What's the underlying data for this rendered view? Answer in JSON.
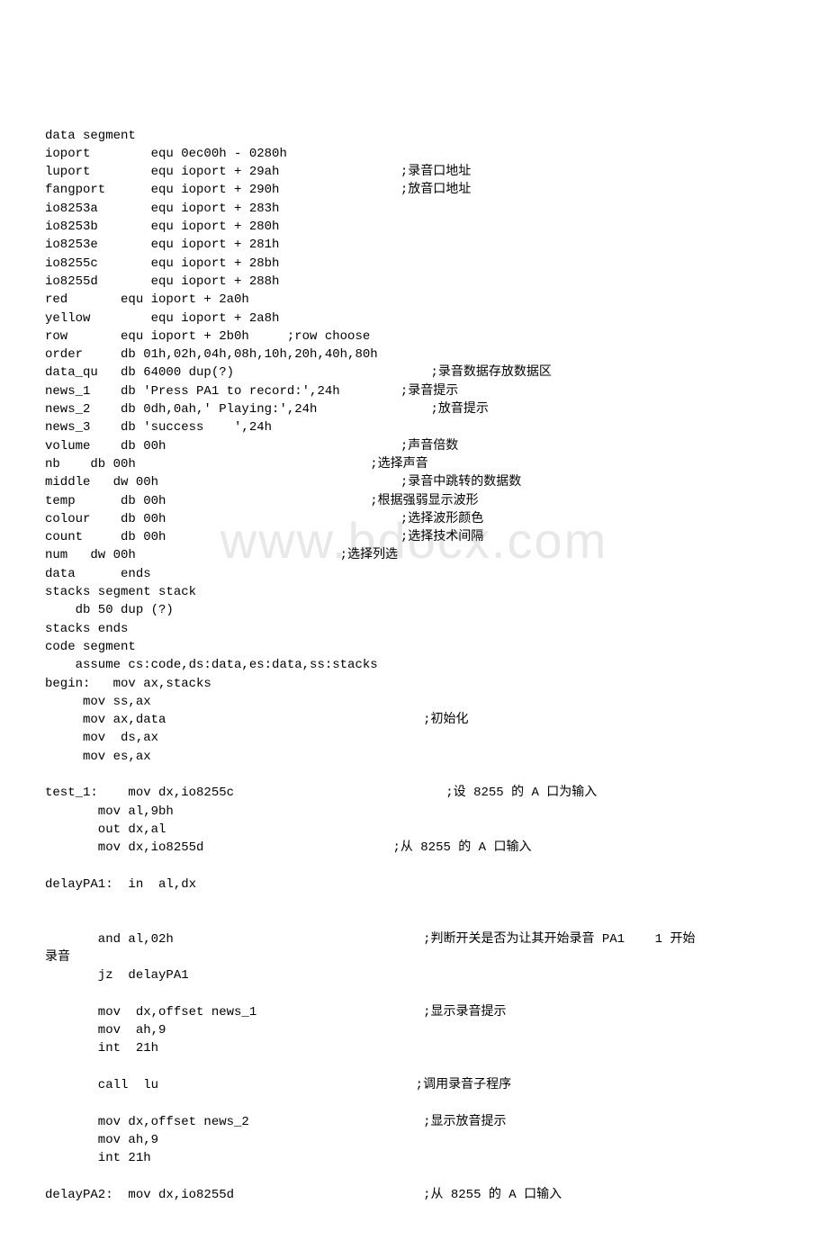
{
  "watermark": "www.bdocx.com",
  "lines": [
    "data segment",
    "ioport        equ 0ec00h - 0280h",
    "luport        equ ioport + 29ah                ;录音口地址",
    "fangport      equ ioport + 290h                ;放音口地址",
    "io8253a       equ ioport + 283h",
    "io8253b       equ ioport + 280h",
    "io8253e       equ ioport + 281h",
    "io8255c       equ ioport + 28bh",
    "io8255d       equ ioport + 288h",
    "red       equ ioport + 2a0h",
    "yellow        equ ioport + 2a8h",
    "row       equ ioport + 2b0h     ;row choose",
    "order     db 01h,02h,04h,08h,10h,20h,40h,80h",
    "data_qu   db 64000 dup(?)                          ;录音数据存放数据区",
    "news_1    db 'Press PA1 to record:',24h        ;录音提示",
    "news_2    db 0dh,0ah,' Playing:',24h               ;放音提示",
    "news_3    db 'success    ',24h",
    "volume    db 00h                               ;声音倍数",
    "nb    db 00h                               ;选择声音",
    "middle   dw 00h                                ;录音中跳转的数据数",
    "temp      db 00h                           ;根据强弱显示波形",
    "colour    db 00h                               ;选择波形颜色",
    "count     db 00h                               ;选择技术间隔",
    "num   dw 00h                           ;选择列选",
    "data      ends",
    "stacks segment stack",
    "    db 50 dup (?)",
    "stacks ends",
    "code segment",
    "    assume cs:code,ds:data,es:data,ss:stacks",
    "begin:   mov ax,stacks",
    "     mov ss,ax",
    "     mov ax,data                                  ;初始化",
    "     mov  ds,ax",
    "     mov es,ax",
    "",
    "test_1:    mov dx,io8255c                            ;设 8255 的 A 口为输入",
    "       mov al,9bh",
    "       out dx,al",
    "       mov dx,io8255d                         ;从 8255 的 A 口输入",
    "",
    "delayPA1:  in  al,dx",
    "",
    "",
    "       and al,02h                                 ;判断开关是否为让其开始录音 PA1    1 开始",
    "录音",
    "       jz  delayPA1",
    "",
    "       mov  dx,offset news_1                      ;显示录音提示",
    "       mov  ah,9",
    "       int  21h",
    "",
    "       call  lu                                  ;调用录音子程序",
    "",
    "       mov dx,offset news_2                       ;显示放音提示",
    "       mov ah,9",
    "       int 21h",
    "",
    "delayPA2:  mov dx,io8255d                         ;从 8255 的 A 口输入"
  ]
}
